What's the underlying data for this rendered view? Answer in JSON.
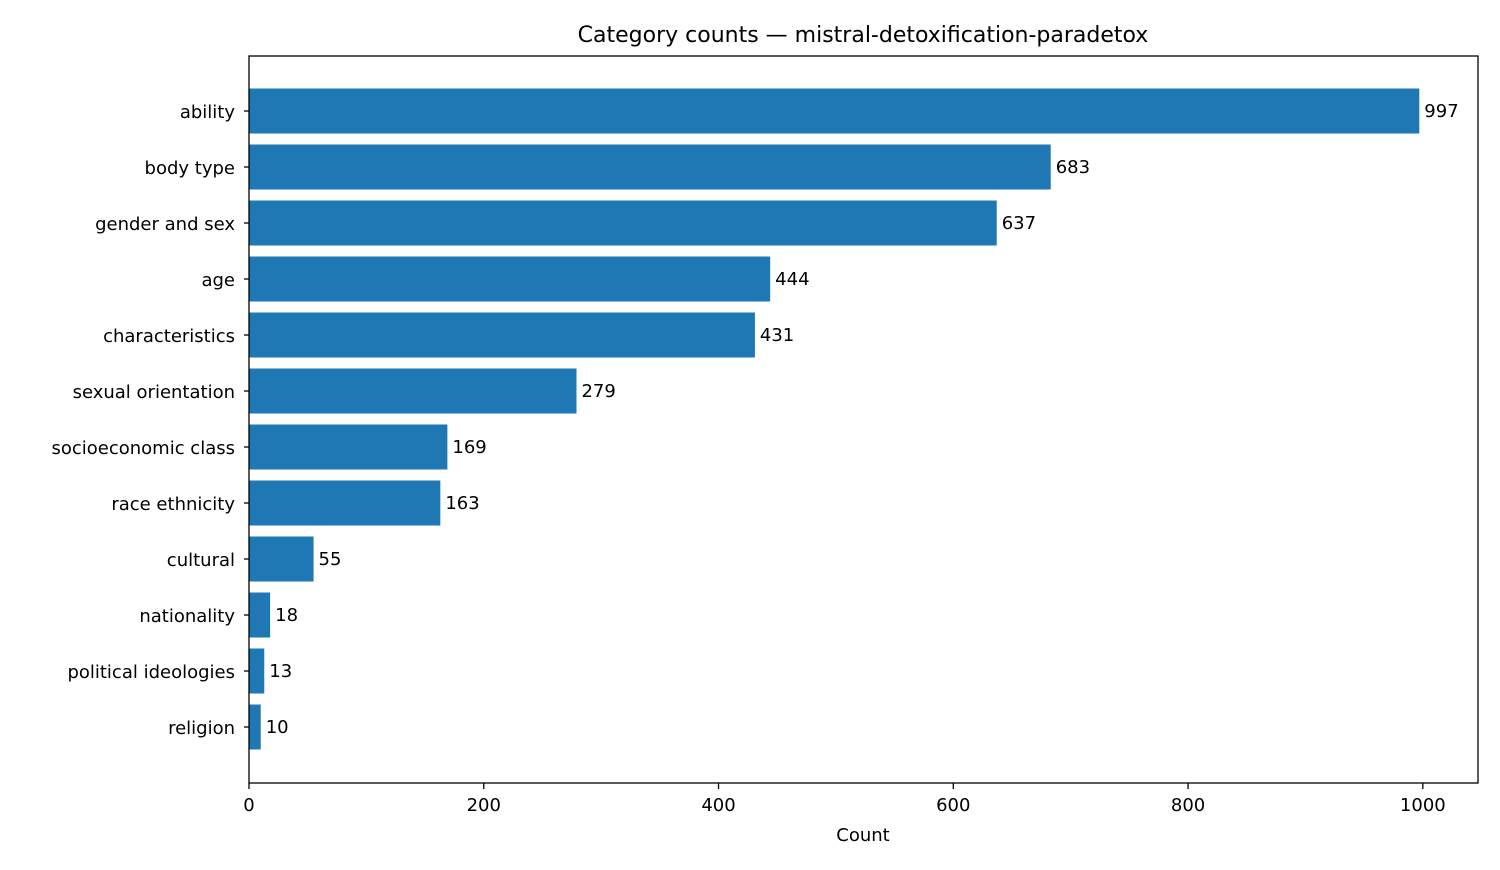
{
  "chart_data": {
    "type": "bar",
    "orientation": "horizontal",
    "title": "Category counts — mistral-detoxification-paradetox",
    "xlabel": "Count",
    "ylabel": "",
    "xlim": [
      0,
      1047
    ],
    "xticks": [
      0,
      200,
      400,
      600,
      800,
      1000
    ],
    "grid": false,
    "bar_color": "#1f77b4",
    "categories": [
      "ability",
      "body type",
      "gender and sex",
      "age",
      "characteristics",
      "sexual orientation",
      "socioeconomic class",
      "race ethnicity",
      "cultural",
      "nationality",
      "political ideologies",
      "religion"
    ],
    "values": [
      997,
      683,
      637,
      444,
      431,
      279,
      169,
      163,
      55,
      18,
      13,
      10
    ]
  }
}
